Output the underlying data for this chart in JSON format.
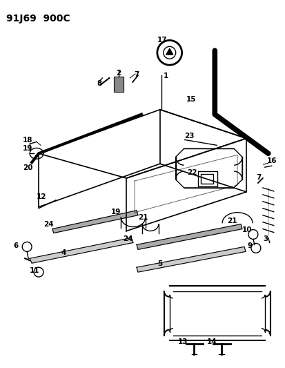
{
  "title": "91J69  900C",
  "bg_color": "#ffffff",
  "line_color": "#000000",
  "title_fontsize": 10,
  "label_fontsize": 7.5,
  "fig_width": 4.14,
  "fig_height": 5.33,
  "dpi": 100
}
